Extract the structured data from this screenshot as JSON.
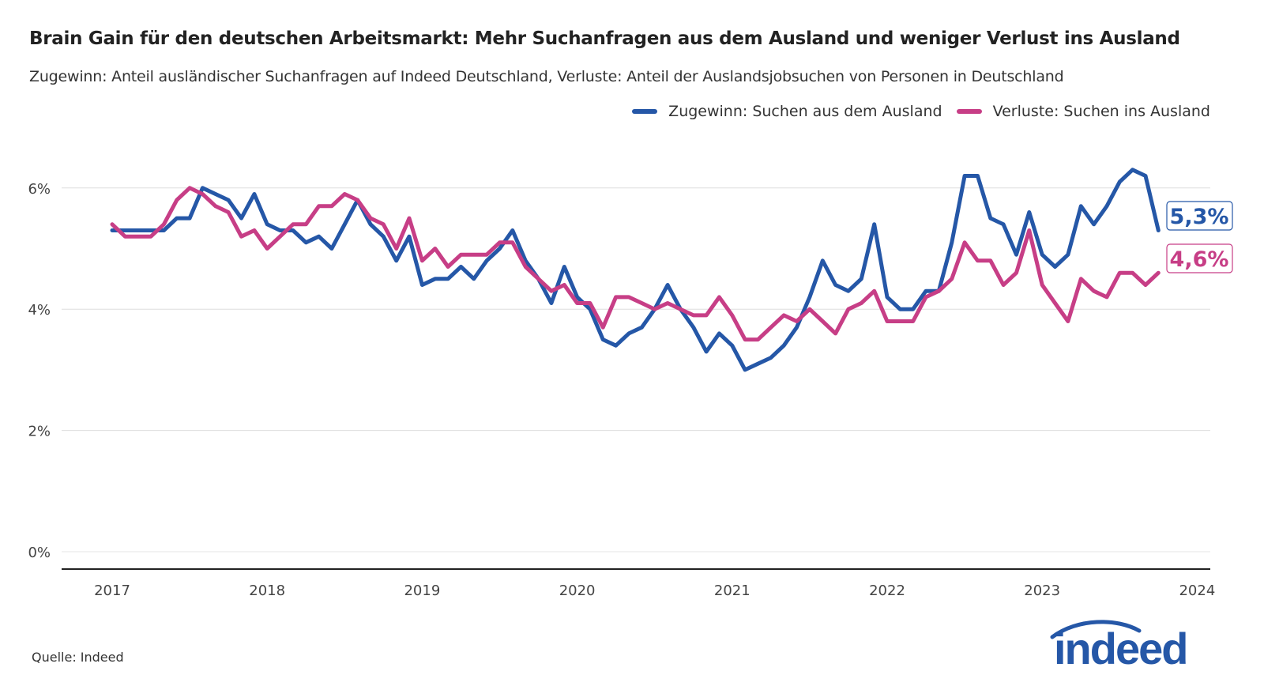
{
  "title": "Brain Gain für den deutschen Arbeitsmarkt: Mehr Suchanfragen aus dem Ausland und weniger Verlust ins Ausland",
  "subtitle": "Zugewinn: Anteil ausländischer Suchanfragen auf Indeed Deutschland, Verluste: Anteil der Auslandsjobsuchen von Personen in Deutschland",
  "source": "Quelle: Indeed",
  "logo": "indeed",
  "chart_data": {
    "type": "line",
    "x_start": "2017-01",
    "x_frequency": "monthly",
    "xlim": [
      2017,
      2024
    ],
    "x_ticks": [
      "2017",
      "2018",
      "2019",
      "2020",
      "2021",
      "2022",
      "2023",
      "2024"
    ],
    "ylim": [
      0,
      7
    ],
    "y_ticks": [
      0,
      2,
      4,
      6
    ],
    "y_tick_labels": [
      "0%",
      "2%",
      "4%",
      "6%"
    ],
    "grid": true,
    "legend_position": "top-right",
    "series": [
      {
        "name": "Zugewinn: Suchen aus dem Ausland",
        "color": "#2557a7",
        "end_label": "5,3%",
        "values": [
          5.3,
          5.3,
          5.3,
          5.3,
          5.3,
          5.5,
          5.5,
          6.0,
          5.9,
          5.8,
          5.5,
          5.9,
          5.4,
          5.3,
          5.3,
          5.1,
          5.2,
          5.0,
          5.4,
          5.8,
          5.4,
          5.2,
          4.8,
          5.2,
          4.4,
          4.5,
          4.5,
          4.7,
          4.5,
          4.8,
          5.0,
          5.3,
          4.8,
          4.5,
          4.1,
          4.7,
          4.2,
          4.0,
          3.5,
          3.4,
          3.6,
          3.7,
          4.0,
          4.4,
          4.0,
          3.7,
          3.3,
          3.6,
          3.4,
          3.0,
          3.1,
          3.2,
          3.4,
          3.7,
          4.2,
          4.8,
          4.4,
          4.3,
          4.5,
          5.4,
          4.2,
          4.0,
          4.0,
          4.3,
          4.3,
          5.1,
          6.2,
          6.2,
          5.5,
          5.4,
          4.9,
          5.6,
          4.9,
          4.7,
          4.9,
          5.7,
          5.4,
          5.7,
          6.1,
          6.3,
          6.2,
          5.3
        ]
      },
      {
        "name": "Verluste: Suchen ins Ausland",
        "color": "#c73e86",
        "end_label": "4,6%",
        "values": [
          5.4,
          5.2,
          5.2,
          5.2,
          5.4,
          5.8,
          6.0,
          5.9,
          5.7,
          5.6,
          5.2,
          5.3,
          5.0,
          5.2,
          5.4,
          5.4,
          5.7,
          5.7,
          5.9,
          5.8,
          5.5,
          5.4,
          5.0,
          5.5,
          4.8,
          5.0,
          4.7,
          4.9,
          4.9,
          4.9,
          5.1,
          5.1,
          4.7,
          4.5,
          4.3,
          4.4,
          4.1,
          4.1,
          3.7,
          4.2,
          4.2,
          4.1,
          4.0,
          4.1,
          4.0,
          3.9,
          3.9,
          4.2,
          3.9,
          3.5,
          3.5,
          3.7,
          3.9,
          3.8,
          4.0,
          3.8,
          3.6,
          4.0,
          4.1,
          4.3,
          3.8,
          3.8,
          3.8,
          4.2,
          4.3,
          4.5,
          5.1,
          4.8,
          4.8,
          4.4,
          4.6,
          5.3,
          4.4,
          4.1,
          3.8,
          4.5,
          4.3,
          4.2,
          4.6,
          4.6,
          4.4,
          4.6
        ]
      }
    ]
  }
}
